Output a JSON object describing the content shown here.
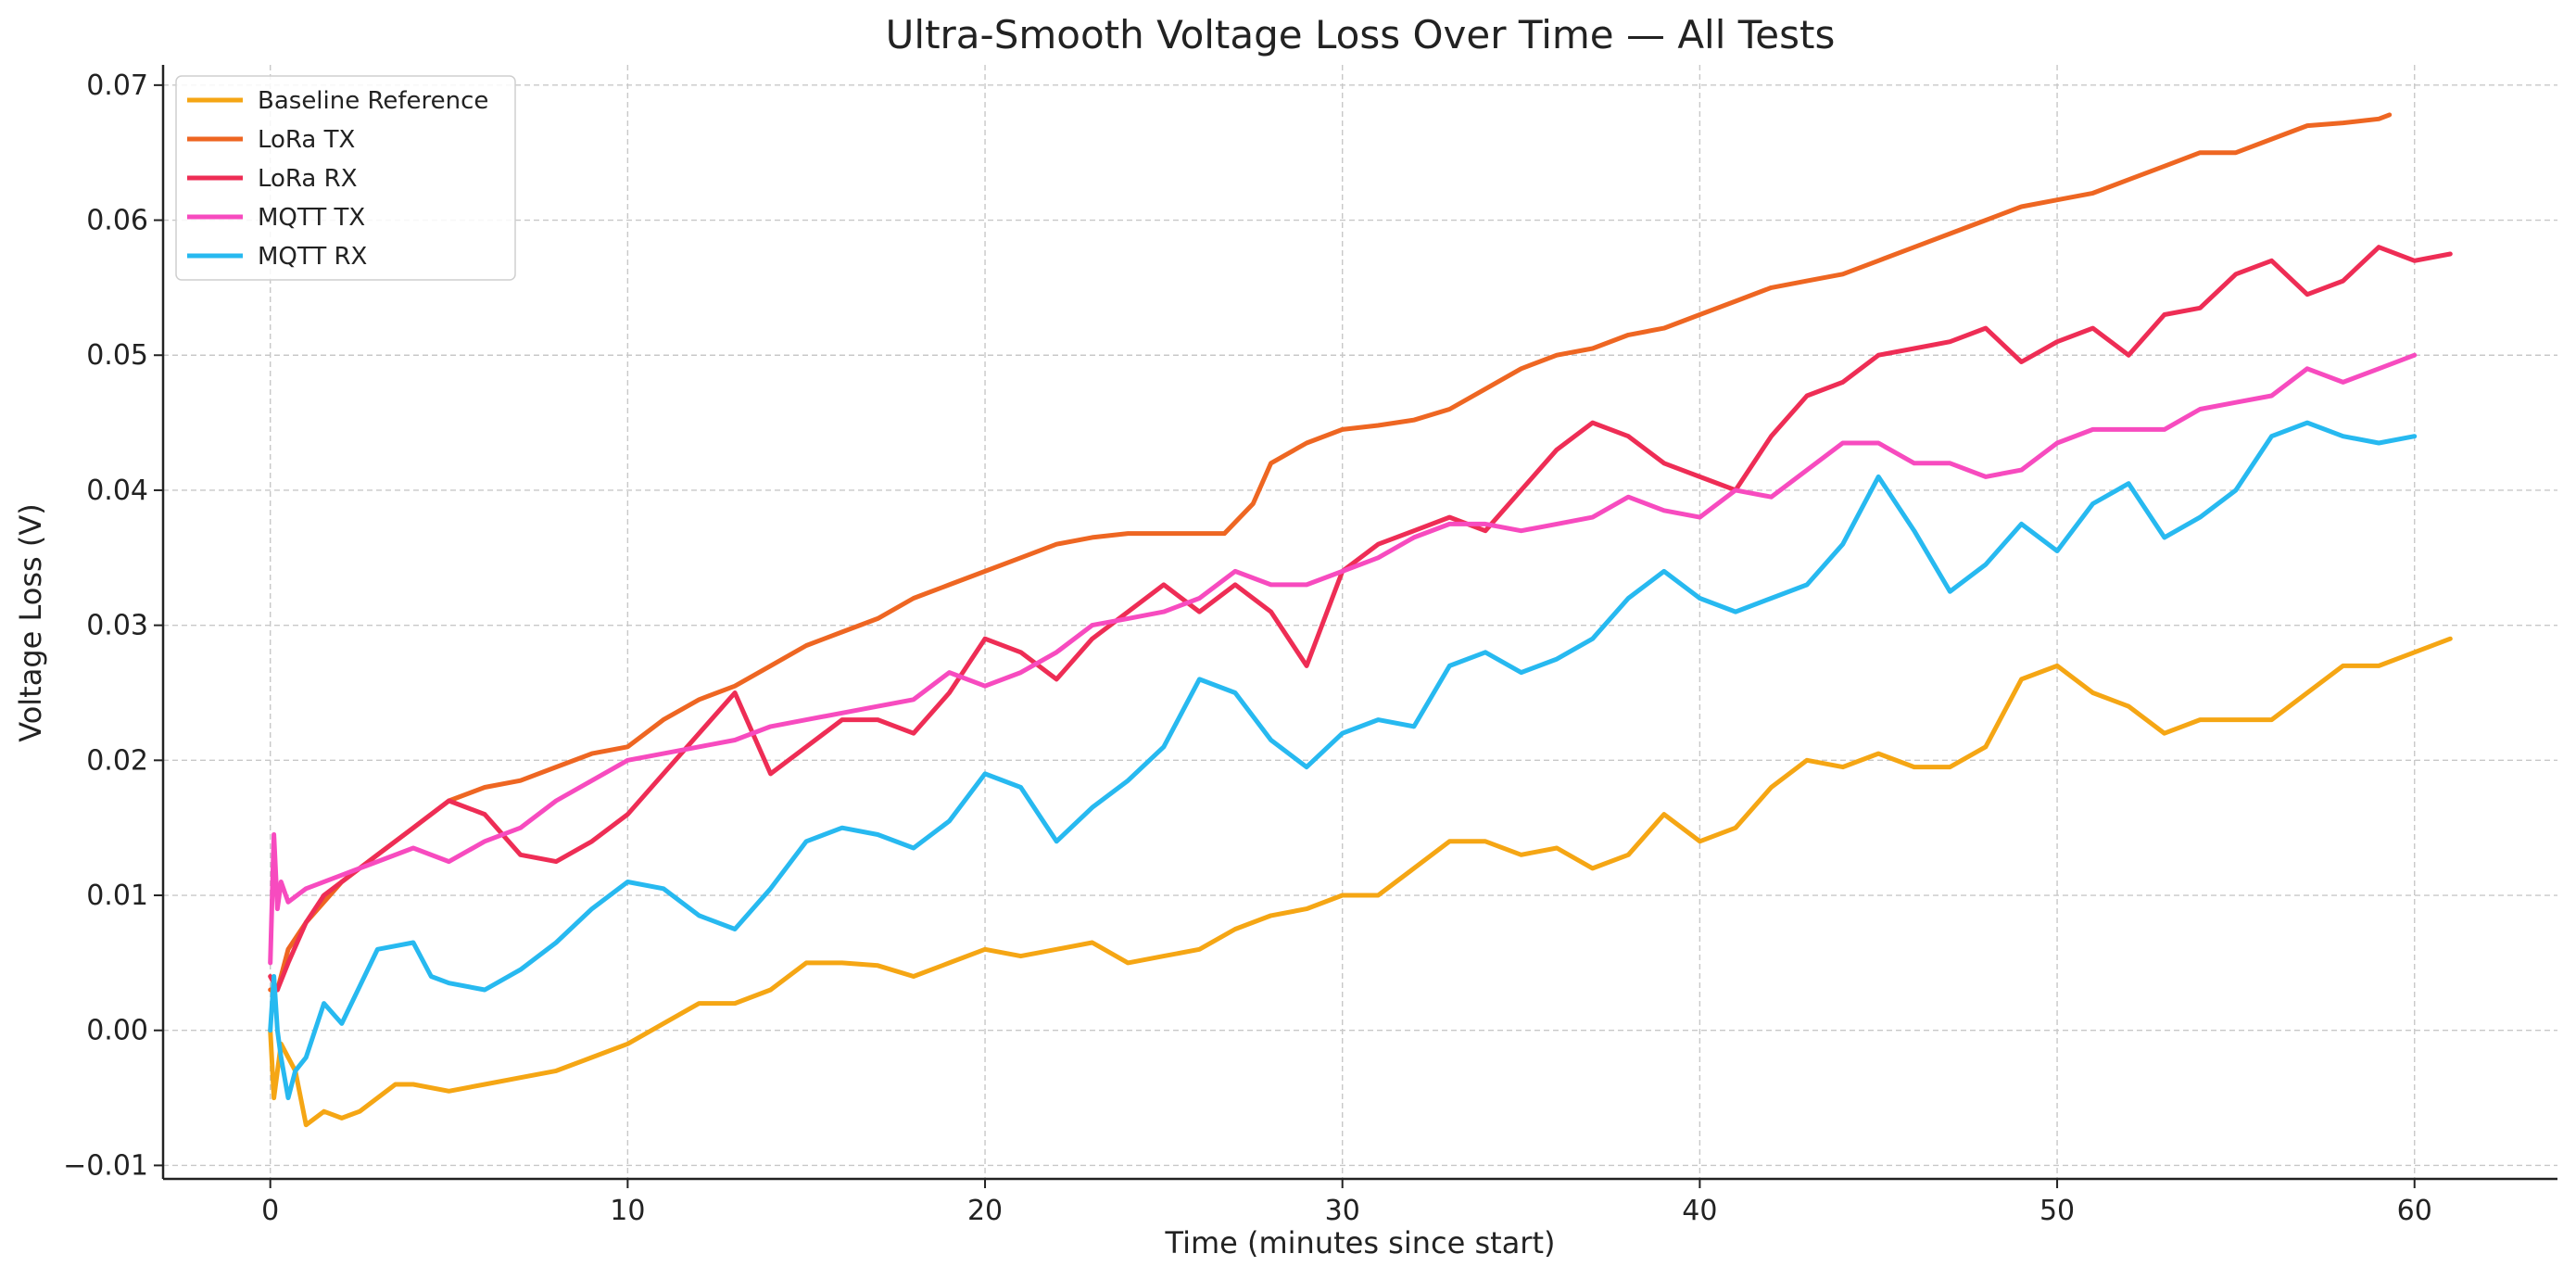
{
  "chart_data": {
    "type": "line",
    "title": "Ultra-Smooth Voltage Loss Over Time — All Tests",
    "xlabel": "Time (minutes since start)",
    "ylabel": "Voltage Loss (V)",
    "xlim": [
      -3,
      64
    ],
    "ylim": [
      -0.011,
      0.0715
    ],
    "xticks": [
      0,
      10,
      20,
      30,
      40,
      50,
      60
    ],
    "xtick_labels": [
      "0",
      "10",
      "20",
      "30",
      "40",
      "50",
      "60"
    ],
    "yticks": [
      -0.01,
      0.0,
      0.01,
      0.02,
      0.03,
      0.04,
      0.05,
      0.06,
      0.07
    ],
    "ytick_labels": [
      "−0.01",
      "0.00",
      "0.01",
      "0.02",
      "0.03",
      "0.04",
      "0.05",
      "0.06",
      "0.07"
    ],
    "grid": true,
    "legend_position": "top-left",
    "series": [
      {
        "name": "Baseline Reference",
        "color": "#f5a614",
        "x": [
          0,
          0.1,
          0.3,
          0.5,
          0.7,
          1,
          1.5,
          2,
          2.5,
          3,
          3.5,
          4,
          5,
          6,
          7,
          8,
          9,
          10,
          11,
          12,
          13,
          14,
          15,
          16,
          17,
          18,
          19,
          20,
          21,
          22,
          23,
          24,
          25,
          26,
          27,
          28,
          29,
          30,
          31,
          32,
          33,
          34,
          35,
          36,
          37,
          38,
          39,
          40,
          41,
          42,
          43,
          44,
          45,
          46,
          47,
          48,
          49,
          50,
          51,
          52,
          53,
          54,
          55,
          56,
          57,
          58,
          59,
          60,
          61
        ],
        "y": [
          0,
          -0.005,
          -0.001,
          -0.002,
          -0.003,
          -0.007,
          -0.006,
          -0.0065,
          -0.006,
          -0.005,
          -0.004,
          -0.004,
          -0.0045,
          -0.004,
          -0.0035,
          -0.003,
          -0.002,
          -0.001,
          0.0005,
          0.002,
          0.002,
          0.003,
          0.005,
          0.005,
          0.0048,
          0.004,
          0.005,
          0.006,
          0.0055,
          0.006,
          0.0065,
          0.005,
          0.0055,
          0.006,
          0.0075,
          0.0085,
          0.009,
          0.01,
          0.01,
          0.012,
          0.014,
          0.014,
          0.013,
          0.0135,
          0.012,
          0.013,
          0.016,
          0.014,
          0.015,
          0.018,
          0.02,
          0.0195,
          0.0205,
          0.0195,
          0.0195,
          0.021,
          0.026,
          0.027,
          0.025,
          0.024,
          0.022,
          0.023,
          0.023,
          0.023,
          0.025,
          0.027,
          0.027,
          0.028,
          0.029
        ]
      },
      {
        "name": "LoRa TX",
        "color": "#ee6622",
        "x": [
          0,
          0.2,
          0.5,
          1,
          2,
          3,
          4,
          5,
          6,
          7,
          8,
          9,
          10,
          11,
          12,
          13,
          14,
          15,
          16,
          17,
          18,
          19,
          20,
          21,
          22,
          23,
          24,
          25,
          26,
          26.7,
          27.5,
          28,
          29,
          30,
          31,
          32,
          33,
          34,
          35,
          36,
          37,
          38,
          39,
          40,
          41,
          42,
          43,
          44,
          45,
          46,
          47,
          48,
          49,
          50,
          51,
          52,
          53,
          54,
          55,
          56,
          57,
          58,
          59,
          59.3
        ],
        "y": [
          0.003,
          0.003,
          0.006,
          0.008,
          0.011,
          0.013,
          0.015,
          0.017,
          0.018,
          0.0185,
          0.0195,
          0.0205,
          0.021,
          0.023,
          0.0245,
          0.0255,
          0.027,
          0.0285,
          0.0295,
          0.0305,
          0.032,
          0.033,
          0.034,
          0.035,
          0.036,
          0.0365,
          0.0368,
          0.0368,
          0.0368,
          0.0368,
          0.039,
          0.042,
          0.0435,
          0.0445,
          0.0448,
          0.0452,
          0.046,
          0.0475,
          0.049,
          0.05,
          0.0505,
          0.0515,
          0.052,
          0.053,
          0.054,
          0.055,
          0.0555,
          0.056,
          0.057,
          0.058,
          0.059,
          0.06,
          0.061,
          0.0615,
          0.062,
          0.063,
          0.064,
          0.065,
          0.065,
          0.066,
          0.067,
          0.0672,
          0.0675,
          0.0678
        ]
      },
      {
        "name": "LoRa RX",
        "color": "#ee2d55",
        "x": [
          0,
          0.2,
          0.5,
          1,
          1.5,
          2,
          3,
          4,
          5,
          6,
          7,
          8,
          9,
          10,
          11,
          12,
          13,
          14,
          15,
          16,
          17,
          18,
          19,
          20,
          21,
          22,
          23,
          24,
          25,
          26,
          27,
          28,
          29,
          30,
          31,
          32,
          33,
          34,
          35,
          36,
          37,
          38,
          39,
          40,
          41,
          42,
          43,
          44,
          45,
          46,
          47,
          48,
          49,
          50,
          51,
          52,
          53,
          54,
          55,
          56,
          57,
          58,
          59,
          60,
          61
        ],
        "y": [
          0.004,
          0.003,
          0.005,
          0.008,
          0.01,
          0.011,
          0.013,
          0.015,
          0.017,
          0.016,
          0.013,
          0.0125,
          0.014,
          0.016,
          0.019,
          0.022,
          0.025,
          0.019,
          0.021,
          0.023,
          0.023,
          0.022,
          0.025,
          0.029,
          0.028,
          0.026,
          0.029,
          0.031,
          0.033,
          0.031,
          0.033,
          0.031,
          0.027,
          0.034,
          0.036,
          0.037,
          0.038,
          0.037,
          0.04,
          0.043,
          0.045,
          0.044,
          0.042,
          0.041,
          0.04,
          0.044,
          0.047,
          0.048,
          0.05,
          0.0505,
          0.051,
          0.052,
          0.0495,
          0.051,
          0.052,
          0.05,
          0.053,
          0.0535,
          0.056,
          0.057,
          0.0545,
          0.0555,
          0.058,
          0.057,
          0.0575
        ]
      },
      {
        "name": "MQTT TX",
        "color": "#f74bbf",
        "x": [
          0,
          0.1,
          0.2,
          0.3,
          0.5,
          1,
          2,
          3,
          4,
          5,
          6,
          7,
          8,
          9,
          10,
          11,
          12,
          13,
          14,
          15,
          16,
          17,
          18,
          19,
          20,
          21,
          22,
          23,
          24,
          25,
          26,
          27,
          28,
          29,
          30,
          31,
          32,
          33,
          34,
          35,
          36,
          37,
          38,
          39,
          40,
          41,
          42,
          43,
          44,
          45,
          46,
          47,
          48,
          49,
          50,
          51,
          52,
          53,
          54,
          55,
          56,
          57,
          58,
          59,
          60
        ],
        "y": [
          0.005,
          0.0145,
          0.009,
          0.011,
          0.0095,
          0.0105,
          0.0115,
          0.0125,
          0.0135,
          0.0125,
          0.014,
          0.015,
          0.017,
          0.0185,
          0.02,
          0.0205,
          0.021,
          0.0215,
          0.0225,
          0.023,
          0.0235,
          0.024,
          0.0245,
          0.0265,
          0.0255,
          0.0265,
          0.028,
          0.03,
          0.0305,
          0.031,
          0.032,
          0.034,
          0.033,
          0.033,
          0.034,
          0.035,
          0.0365,
          0.0375,
          0.0375,
          0.037,
          0.0375,
          0.038,
          0.0395,
          0.0385,
          0.038,
          0.04,
          0.0395,
          0.0415,
          0.0435,
          0.0435,
          0.042,
          0.042,
          0.041,
          0.0415,
          0.0435,
          0.0445,
          0.0445,
          0.0445,
          0.046,
          0.0465,
          0.047,
          0.049,
          0.048,
          0.049,
          0.05
        ]
      },
      {
        "name": "MQTT RX",
        "color": "#27b9f0",
        "x": [
          0,
          0.1,
          0.2,
          0.3,
          0.5,
          0.7,
          1,
          1.5,
          2,
          3,
          4,
          4.5,
          5,
          6,
          7,
          8,
          9,
          10,
          11,
          12,
          13,
          14,
          15,
          16,
          17,
          18,
          19,
          20,
          21,
          22,
          23,
          24,
          25,
          26,
          27,
          28,
          29,
          30,
          31,
          32,
          33,
          34,
          35,
          36,
          37,
          38,
          39,
          40,
          41,
          42,
          43,
          44,
          45,
          46,
          47,
          48,
          49,
          50,
          51,
          52,
          53,
          54,
          55,
          56,
          57,
          58,
          59,
          60
        ],
        "y": [
          0,
          0.004,
          0.0,
          -0.002,
          -0.005,
          -0.003,
          -0.002,
          0.002,
          0.0005,
          0.006,
          0.0065,
          0.004,
          0.0035,
          0.003,
          0.0045,
          0.0065,
          0.009,
          0.011,
          0.0105,
          0.0085,
          0.0075,
          0.0105,
          0.014,
          0.015,
          0.0145,
          0.0135,
          0.0155,
          0.019,
          0.018,
          0.014,
          0.0165,
          0.0185,
          0.021,
          0.026,
          0.025,
          0.0215,
          0.0195,
          0.022,
          0.023,
          0.0225,
          0.027,
          0.028,
          0.0265,
          0.0275,
          0.029,
          0.032,
          0.034,
          0.032,
          0.031,
          0.032,
          0.033,
          0.036,
          0.041,
          0.037,
          0.0325,
          0.0345,
          0.0375,
          0.0355,
          0.039,
          0.0405,
          0.0365,
          0.038,
          0.04,
          0.044,
          0.045,
          0.044,
          0.0435,
          0.044
        ]
      }
    ]
  }
}
